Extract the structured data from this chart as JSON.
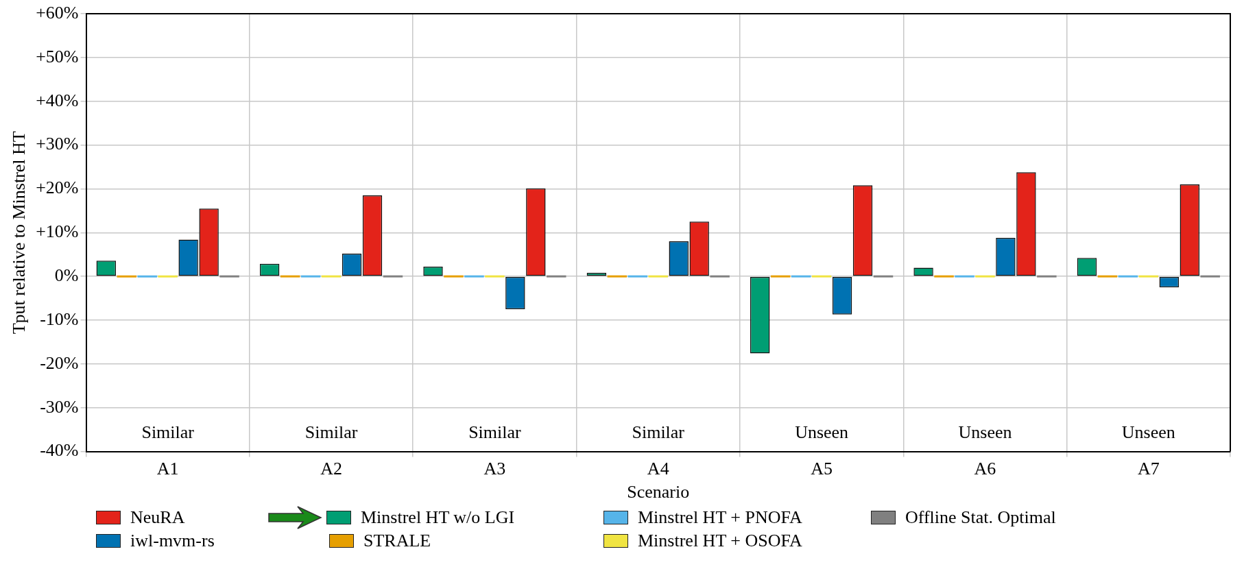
{
  "chart_data": {
    "type": "bar",
    "xlabel": "Scenario",
    "ylabel": "Tput relative to Minstrel HT",
    "categories": [
      "A1",
      "A2",
      "A3",
      "A4",
      "A5",
      "A6",
      "A7"
    ],
    "series": [
      {
        "name": "Minstrel HT w/o LGI",
        "color": "#009e73",
        "values": [
          3.6,
          2.9,
          2.2,
          0.8,
          -17.6,
          2.0,
          4.2
        ]
      },
      {
        "name": "STRALE",
        "color": "#e69f00",
        "values": [
          0,
          0,
          0,
          0,
          0,
          0,
          0
        ]
      },
      {
        "name": "Minstrel HT + PNOFA",
        "color": "#56b4e9",
        "values": [
          0,
          0,
          0,
          0,
          0,
          0,
          0
        ]
      },
      {
        "name": "Minstrel HT + OSOFA",
        "color": "#f0e442",
        "values": [
          0,
          0,
          0,
          0,
          0,
          0,
          0
        ]
      },
      {
        "name": "iwl-mvm-rs",
        "color": "#0072b2",
        "values": [
          8.4,
          5.2,
          -7.5,
          8.0,
          -8.7,
          8.8,
          -2.5
        ]
      },
      {
        "name": "NeuRA",
        "color": "#e3231a",
        "values": [
          15.5,
          18.5,
          20.1,
          12.5,
          20.8,
          23.8,
          21.0
        ]
      },
      {
        "name": "Offline Stat. Optimal",
        "color": "#808080",
        "values": [
          0,
          0,
          0,
          0,
          0,
          0,
          0
        ]
      }
    ],
    "ylim": [
      -40,
      60
    ],
    "yticks": [
      {
        "value": -40,
        "label": "-40%"
      },
      {
        "value": -30,
        "label": "-30%"
      },
      {
        "value": -20,
        "label": "-20%"
      },
      {
        "value": -10,
        "label": "-10%"
      },
      {
        "value": 0,
        "label": "0%"
      },
      {
        "value": 10,
        "label": "+10%"
      },
      {
        "value": 20,
        "label": "+20%"
      },
      {
        "value": 30,
        "label": "+30%"
      },
      {
        "value": 40,
        "label": "+40%"
      },
      {
        "value": 50,
        "label": "+50%"
      },
      {
        "value": 60,
        "label": "+60%"
      }
    ],
    "annotations": [
      "Similar",
      "Similar",
      "Similar",
      "Similar",
      "Unseen",
      "Unseen",
      "Unseen"
    ],
    "grid": true,
    "legend": "bottom"
  }
}
